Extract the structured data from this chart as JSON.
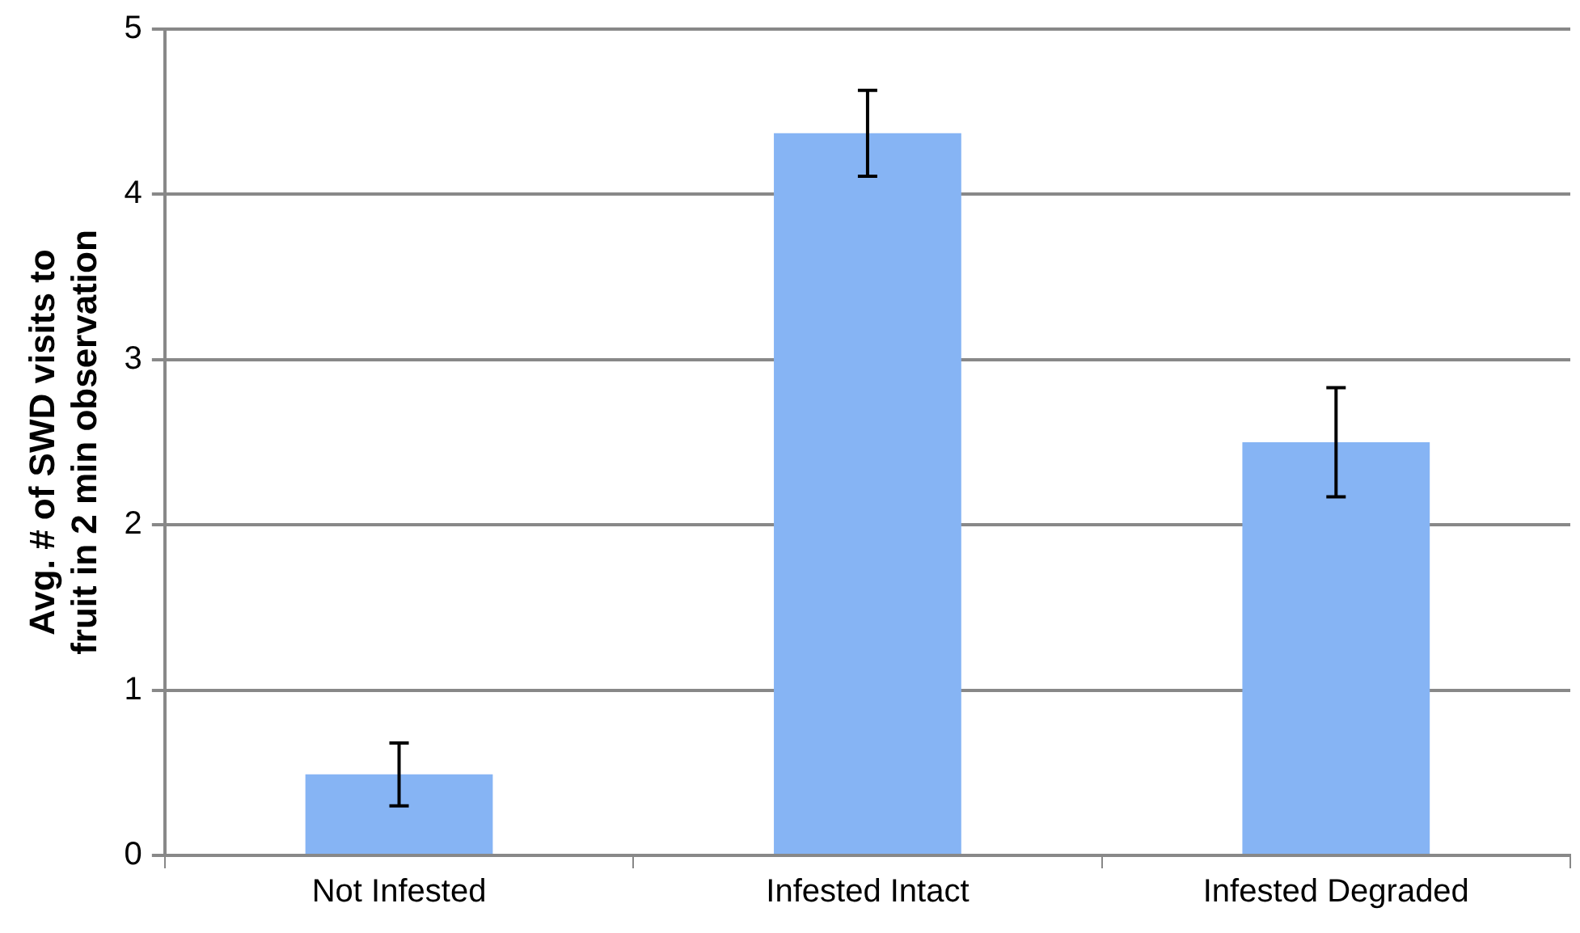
{
  "chart_data": {
    "type": "bar",
    "ylabel": "Avg. # of SWD visits to fruit in 2 min observation",
    "categories": [
      "Not Infested",
      "Infested Intact",
      "Infested Degraded"
    ],
    "values": [
      0.49,
      4.37,
      2.5
    ],
    "errors": [
      0.19,
      0.26,
      0.33
    ],
    "color": "#86b4f4",
    "ylim": [
      0,
      5
    ],
    "yticks": [
      0,
      1,
      2,
      3,
      4,
      5
    ],
    "grid": "y"
  }
}
